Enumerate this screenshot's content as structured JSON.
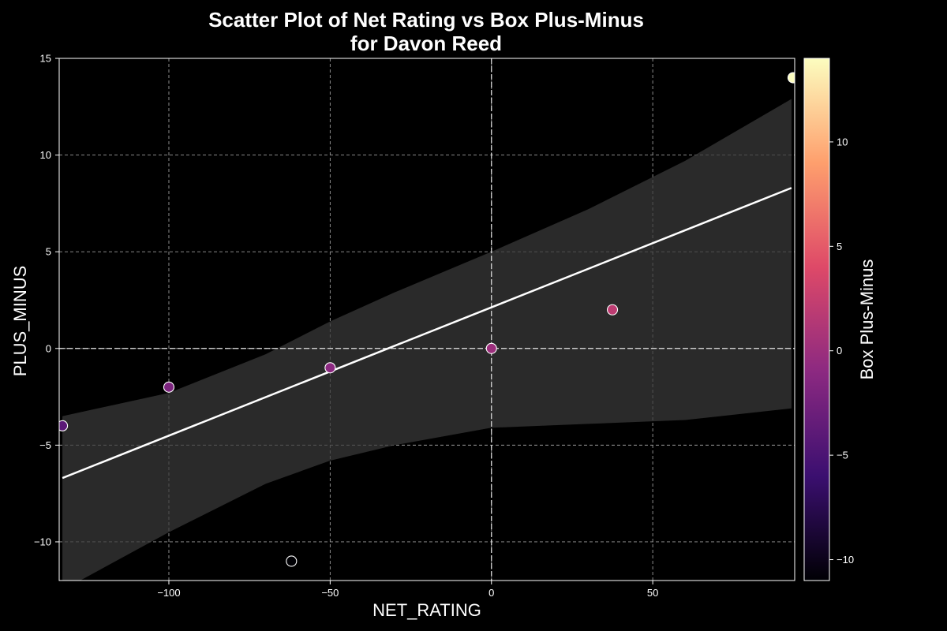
{
  "chart_data": {
    "type": "scatter",
    "title_lines": [
      "Scatter Plot of Net Rating vs Box Plus-Minus",
      "for Davon Reed"
    ],
    "xlabel": "NET_RATING",
    "ylabel": "PLUS_MINUS",
    "xlim": [
      -134,
      94
    ],
    "ylim": [
      -12,
      15
    ],
    "xticks": [
      -100,
      -50,
      0,
      50
    ],
    "yticks": [
      -10,
      -5,
      0,
      5,
      10,
      15
    ],
    "grid": true,
    "reference_lines": {
      "x": 0,
      "y": 0
    },
    "points": [
      {
        "x": -133,
        "y": -4
      },
      {
        "x": -100,
        "y": -2
      },
      {
        "x": -62,
        "y": -11
      },
      {
        "x": -50,
        "y": -1
      },
      {
        "x": 0,
        "y": 0
      },
      {
        "x": 37.5,
        "y": 2
      },
      {
        "x": 93.5,
        "y": 14
      }
    ],
    "regression": {
      "x": [
        -133,
        93
      ],
      "y": [
        -6.7,
        8.3
      ],
      "ci_x": [
        -133,
        -100,
        -70,
        -50,
        -30,
        0,
        30,
        60,
        93
      ],
      "ci_upper": [
        -3.5,
        -2.3,
        -0.3,
        1.4,
        2.9,
        5.0,
        7.2,
        9.7,
        12.9
      ],
      "ci_lower": [
        -12.5,
        -9.5,
        -7.0,
        -5.8,
        -5.0,
        -4.1,
        -3.9,
        -3.7,
        -3.1
      ]
    },
    "colorbar": {
      "label": "Box Plus-Minus",
      "range": [
        -11,
        14
      ],
      "ticks": [
        -10,
        -5,
        0,
        5,
        10
      ],
      "colormap": [
        "#000004",
        "#3b0f70",
        "#8c2981",
        "#de4968",
        "#fe9f6d",
        "#fcfdbf"
      ]
    }
  }
}
